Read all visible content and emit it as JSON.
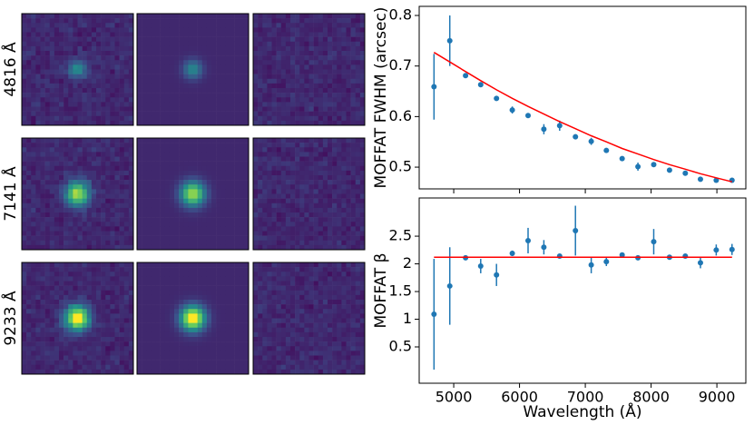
{
  "image_grid": {
    "row_labels": [
      "4816 Å",
      "7141 Å",
      "9233 Å"
    ]
  },
  "chart_data": [
    {
      "type": "scatter",
      "ylabel": "MOFFAT FWHM (arcsec)",
      "x": [
        4700,
        4940,
        5180,
        5410,
        5650,
        5890,
        6130,
        6370,
        6610,
        6850,
        7090,
        7320,
        7560,
        7800,
        8040,
        8280,
        8520,
        8750,
        8990,
        9230
      ],
      "values": [
        0.659,
        0.75,
        0.681,
        0.663,
        0.636,
        0.613,
        0.602,
        0.575,
        0.582,
        0.56,
        0.551,
        0.533,
        0.517,
        0.501,
        0.505,
        0.494,
        0.488,
        0.476,
        0.474,
        0.474
      ],
      "errors": [
        0.065,
        0.05,
        0.003,
        0.004,
        0.004,
        0.007,
        0.004,
        0.01,
        0.01,
        0.005,
        0.007,
        0.004,
        0.004,
        0.008,
        0.004,
        0.003,
        0.003,
        0.004,
        0.003,
        0.003
      ],
      "color": "#1f77b4",
      "fit": {
        "color": "red",
        "values": [
          0.727,
          0.708,
          0.689,
          0.671,
          0.653,
          0.636,
          0.62,
          0.605,
          0.59,
          0.576,
          0.562,
          0.55,
          0.537,
          0.526,
          0.515,
          0.505,
          0.496,
          0.487,
          0.479,
          0.471
        ]
      },
      "xlim": [
        4475,
        9440
      ],
      "xticks": [
        5000,
        6000,
        7000,
        8000,
        9000
      ],
      "xtick_labels": false,
      "ylim": [
        0.457,
        0.818
      ],
      "yticks": [
        0.5,
        0.6,
        0.7,
        0.8
      ]
    },
    {
      "type": "scatter",
      "ylabel": "MOFFAT β",
      "xlabel": "Wavelength (Å)",
      "x": [
        4700,
        4940,
        5180,
        5410,
        5650,
        5890,
        6130,
        6370,
        6610,
        6850,
        7090,
        7320,
        7560,
        7800,
        8040,
        8280,
        8520,
        8750,
        8990,
        9230
      ],
      "values": [
        1.09,
        1.6,
        2.11,
        1.96,
        1.8,
        2.19,
        2.42,
        2.3,
        2.14,
        2.6,
        1.98,
        2.04,
        2.16,
        2.11,
        2.4,
        2.12,
        2.14,
        2.02,
        2.25,
        2.26
      ],
      "errors": [
        1.0,
        0.7,
        0.03,
        0.13,
        0.2,
        0.05,
        0.23,
        0.13,
        0.03,
        0.45,
        0.15,
        0.08,
        0.03,
        0.03,
        0.23,
        0.03,
        0.03,
        0.1,
        0.1,
        0.1
      ],
      "color": "#1f77b4",
      "fit": {
        "color": "red",
        "values": [
          2.12,
          2.12,
          2.12,
          2.12,
          2.12,
          2.12,
          2.12,
          2.12,
          2.12,
          2.12,
          2.12,
          2.12,
          2.12,
          2.12,
          2.12,
          2.12,
          2.12,
          2.12,
          2.12,
          2.12
        ]
      },
      "xlim": [
        4475,
        9440
      ],
      "xticks": [
        5000,
        6000,
        7000,
        8000,
        9000
      ],
      "xtick_labels": true,
      "ylim": [
        -0.156,
        3.19
      ],
      "yticks": [
        0.5,
        1.0,
        1.5,
        2.0,
        2.5
      ]
    }
  ]
}
